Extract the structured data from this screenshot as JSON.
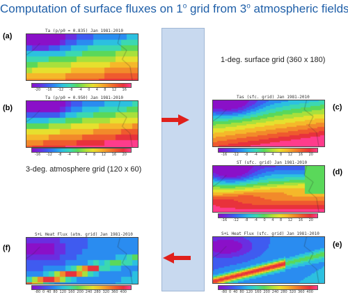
{
  "title": {
    "pre": "Computation of surface fluxes on 1",
    "deg1": "o",
    "mid": " grid from 3",
    "deg2": "o",
    "post": " atmospheric fields"
  },
  "annotations": {
    "surface_grid": "1-deg. surface grid (360 x 180)",
    "atmos_grid": "3-deg. atmosphere grid (120 x 60)"
  },
  "panels": {
    "a": {
      "label": "(a)",
      "title": "Ta (p/p0 = 0.835)  Jan 1981-2010",
      "cb": [
        "-20",
        "-16",
        "-12",
        "-8",
        "-4",
        "0",
        "4",
        "8",
        "12",
        "16"
      ]
    },
    "b": {
      "label": "(b)",
      "title": "Ta (p/p0 = 0.950)  Jan 1981-2010",
      "cb": [
        "-16",
        "-12",
        "-8",
        "-4",
        "0",
        "4",
        "8",
        "12",
        "16",
        "20"
      ]
    },
    "c": {
      "label": "(c)",
      "title": "Tas (sfc. grid)  Jan 1981-2010",
      "cb": [
        "-16",
        "-12",
        "-8",
        "-4",
        "0",
        "4",
        "8",
        "12",
        "16",
        "20"
      ]
    },
    "d": {
      "label": "(d)",
      "title": "ST (sfc. grid)  Jan 1981-2010",
      "cb": [
        "-16",
        "-12",
        "-8",
        "-4",
        "0",
        "4",
        "8",
        "12",
        "16",
        "20"
      ]
    },
    "e": {
      "label": "(e)",
      "title": "S+L Heat Flux (sfc. grid)  Jan 1981-2010",
      "cb": [
        "-80",
        "0",
        "40",
        "80",
        "120",
        "160",
        "200",
        "240",
        "280",
        "320",
        "360",
        "400"
      ]
    },
    "f": {
      "label": "(f)",
      "title": "S+L Heat Flux (atm. grid)  Jan 1981-2010",
      "cb": [
        "-80",
        "0",
        "40",
        "80",
        "120",
        "160",
        "200",
        "240",
        "280",
        "320",
        "360",
        "400"
      ]
    }
  },
  "colors": {
    "accent": "#1f5fa8",
    "arrow": "#e0201b",
    "box": "#c8d9ef"
  }
}
